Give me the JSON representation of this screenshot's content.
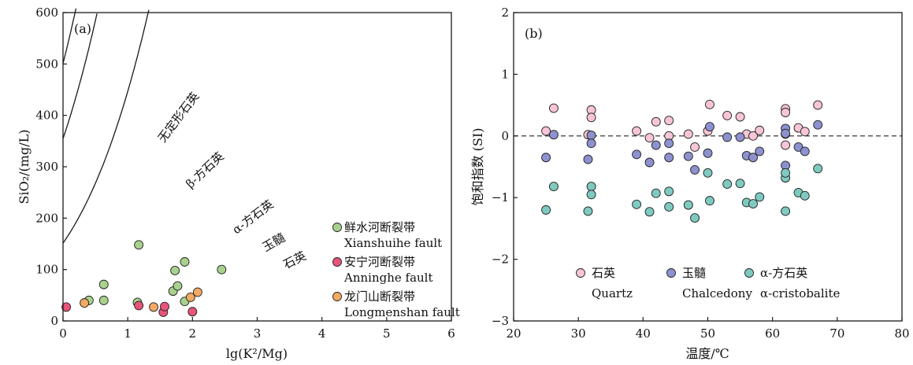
{
  "colors": {
    "xianshuihe": "#a9d18e",
    "anninghe": "#e8557a",
    "longmenshan": "#f4a962",
    "quartz": "#f7c5d5",
    "chalcedony": "#8d91cf",
    "cristobalite": "#7ecac0",
    "stroke": "#1a1a1a"
  },
  "chart_data": [
    {
      "type": "scatter",
      "panel_label": "(a)",
      "xlabel": "lg(K²/Mg)",
      "ylabel": "SiO₂/(mg/L)",
      "xlim": [
        0,
        6
      ],
      "ylim": [
        0,
        600
      ],
      "xticks": [
        "0",
        "1",
        "2",
        "3",
        "4",
        "5",
        "6"
      ],
      "yticks": [
        "0",
        "100",
        "200",
        "300",
        "400",
        "500",
        "600"
      ],
      "curves": [
        {
          "name": "无定形石英",
          "a": 5.0,
          "b": 1.62
        },
        {
          "name": "β-方石英",
          "a": 4.84,
          "b": 1.7
        },
        {
          "name": "α-方石英",
          "a": 4.65,
          "b": 1.95
        },
        {
          "name": "玉髓",
          "a": 4.63,
          "b": 2.08
        },
        {
          "name": "石英",
          "a": 4.56,
          "b": 2.38
        }
      ],
      "curve_labels": [
        "无定形石英",
        "β-方石英",
        "α-方石英",
        "玉髓",
        "石英"
      ],
      "legend_position": "bottom-right",
      "series": [
        {
          "name": "鲜水河断裂带",
          "name_en": "Xianshuihe fault",
          "color_key": "xianshuihe",
          "points": [
            [
              0.4,
              40
            ],
            [
              0.63,
              40
            ],
            [
              0.63,
              71
            ],
            [
              1.15,
              36
            ],
            [
              1.17,
              148
            ],
            [
              1.7,
              58
            ],
            [
              1.73,
              98
            ],
            [
              1.77,
              68
            ],
            [
              1.88,
              38
            ],
            [
              1.88,
              115
            ],
            [
              2.45,
              100
            ]
          ]
        },
        {
          "name": "安宁河断裂带",
          "name_en": "Anninghe fault",
          "color_key": "anninghe",
          "points": [
            [
              0.05,
              27
            ],
            [
              1.17,
              30
            ],
            [
              1.55,
              17
            ],
            [
              1.57,
              28
            ],
            [
              2.0,
              18
            ]
          ]
        },
        {
          "name": "龙门山断裂带",
          "name_en": "Longmenshan fault",
          "color_key": "longmenshan",
          "points": [
            [
              0.33,
              35
            ],
            [
              1.4,
              27
            ],
            [
              1.97,
              46
            ],
            [
              2.08,
              56
            ]
          ]
        }
      ]
    },
    {
      "type": "scatter",
      "panel_label": "(b)",
      "xlabel": "温度/℃",
      "ylabel": "饱和指数 (SI)",
      "xlim": [
        20,
        80
      ],
      "ylim": [
        -3,
        2
      ],
      "xticks": [
        "20",
        "30",
        "40",
        "50",
        "60",
        "70",
        "80"
      ],
      "yticks": [
        "−3",
        "−2",
        "−1",
        "0",
        "1",
        "2"
      ],
      "legend_position": "bottom",
      "reference_line": 0,
      "series": [
        {
          "name": "石英",
          "name_en": "Quartz",
          "color_key": "quartz",
          "points": [
            [
              25,
              0.08
            ],
            [
              26.2,
              0.45
            ],
            [
              31.5,
              0.02
            ],
            [
              32,
              0.42
            ],
            [
              32,
              0.3
            ],
            [
              39,
              0.08
            ],
            [
              41,
              -0.03
            ],
            [
              42,
              0.23
            ],
            [
              44,
              0.25
            ],
            [
              44,
              0.0
            ],
            [
              47,
              0.03
            ],
            [
              48,
              -0.18
            ],
            [
              50,
              0.08
            ],
            [
              50.3,
              0.51
            ],
            [
              53,
              0.33
            ],
            [
              55,
              0.31
            ],
            [
              56,
              0.03
            ],
            [
              57,
              0.0
            ],
            [
              58,
              0.09
            ],
            [
              62,
              0.44
            ],
            [
              62,
              0.38
            ],
            [
              62,
              0.03
            ],
            [
              62,
              -0.15
            ],
            [
              64,
              0.13
            ],
            [
              65,
              0.07
            ],
            [
              67,
              0.5
            ]
          ]
        },
        {
          "name": "玉髓",
          "name_en": "Chalcedony",
          "color_key": "chalcedony",
          "points": [
            [
              25,
              -0.35
            ],
            [
              26.2,
              0.02
            ],
            [
              31.5,
              -0.38
            ],
            [
              32,
              0.01
            ],
            [
              32,
              -0.12
            ],
            [
              39,
              -0.3
            ],
            [
              41,
              -0.43
            ],
            [
              42,
              -0.15
            ],
            [
              44,
              -0.35
            ],
            [
              44,
              -0.12
            ],
            [
              47,
              -0.33
            ],
            [
              48,
              -0.55
            ],
            [
              50,
              -0.28
            ],
            [
              50.3,
              0.15
            ],
            [
              53,
              -0.02
            ],
            [
              55,
              -0.02
            ],
            [
              56,
              -0.32
            ],
            [
              57,
              -0.35
            ],
            [
              58,
              -0.25
            ],
            [
              62,
              0.12
            ],
            [
              62,
              0.04
            ],
            [
              62,
              -0.48
            ],
            [
              64,
              -0.18
            ],
            [
              65,
              -0.25
            ],
            [
              67,
              0.18
            ]
          ]
        },
        {
          "name": "α-方石英",
          "name_en": "α-cristobalite",
          "color_key": "cristobalite",
          "points": [
            [
              25,
              -1.2
            ],
            [
              26.2,
              -0.82
            ],
            [
              31.5,
              -1.22
            ],
            [
              32,
              -0.82
            ],
            [
              32,
              -0.95
            ],
            [
              39,
              -1.11
            ],
            [
              41,
              -1.23
            ],
            [
              42,
              -0.93
            ],
            [
              44,
              -1.15
            ],
            [
              44,
              -0.9
            ],
            [
              47,
              -1.12
            ],
            [
              48,
              -1.33
            ],
            [
              50,
              -0.6
            ],
            [
              50.3,
              -1.05
            ],
            [
              53,
              -0.78
            ],
            [
              55,
              -0.77
            ],
            [
              56,
              -1.08
            ],
            [
              57,
              -1.1
            ],
            [
              58,
              -0.99
            ],
            [
              62,
              -0.68
            ],
            [
              62,
              -0.6
            ],
            [
              62,
              -1.22
            ],
            [
              64,
              -0.92
            ],
            [
              65,
              -0.97
            ],
            [
              67,
              -0.53
            ]
          ]
        }
      ]
    }
  ]
}
